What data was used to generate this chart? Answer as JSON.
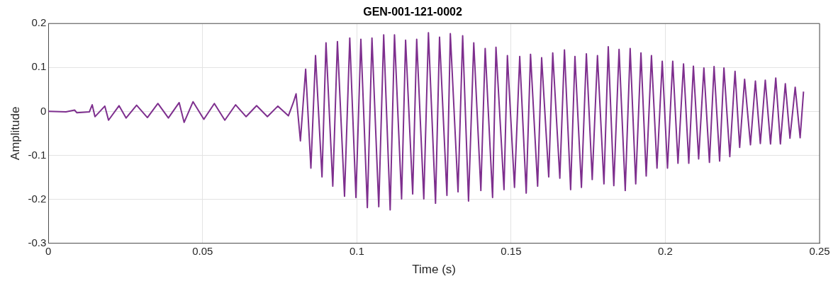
{
  "chart_data": {
    "type": "line",
    "title": "GEN-001-121-0002",
    "xlabel": "Time (s)",
    "ylabel": "Amplitude",
    "xlim": [
      0,
      0.25
    ],
    "xticks": [
      0,
      0.05,
      0.1,
      0.15,
      0.2,
      0.25
    ],
    "ylim": [
      -0.3,
      0.2
    ],
    "yticks": [
      -0.3,
      -0.2,
      -0.1,
      0,
      0.1,
      0.2
    ],
    "grid": true,
    "legend": false,
    "marker": "none",
    "line_style": "solid",
    "series": [
      {
        "color": "#7e2f8e",
        "x": [
          0,
          0.0057,
          0.0085,
          0.0092,
          0.0133,
          0.0142,
          0.0151,
          0.0183,
          0.0195,
          0.0229,
          0.0252,
          0.0286,
          0.0321,
          0.0355,
          0.0389,
          0.0424,
          0.044,
          0.0469,
          0.0504,
          0.0538,
          0.0572,
          0.0607,
          0.0641,
          0.0675,
          0.071,
          0.0744,
          0.0778,
          0.0794,
          0.0803,
          0.0817,
          0.0834,
          0.0851,
          0.0866,
          0.0887,
          0.09,
          0.0922,
          0.0937,
          0.096,
          0.0977,
          0.0997,
          0.1013,
          0.1034,
          0.1049,
          0.1071,
          0.1087,
          0.1108,
          0.1122,
          0.1145,
          0.1158,
          0.1181,
          0.1194,
          0.1217,
          0.1232,
          0.1255,
          0.1268,
          0.1292,
          0.1303,
          0.1328,
          0.1343,
          0.1362,
          0.1379,
          0.1402,
          0.1416,
          0.144,
          0.1451,
          0.1477,
          0.1488,
          0.1511,
          0.1528,
          0.1549,
          0.1563,
          0.1586,
          0.1599,
          0.1622,
          0.1635,
          0.1658,
          0.1673,
          0.1693,
          0.1707,
          0.1728,
          0.1744,
          0.1763,
          0.178,
          0.1801,
          0.1815,
          0.1833,
          0.185,
          0.187,
          0.1886,
          0.1904,
          0.1921,
          0.1938,
          0.1955,
          0.1973,
          0.199,
          0.2007,
          0.2024,
          0.2041,
          0.2059,
          0.2076,
          0.2091,
          0.2108,
          0.2125,
          0.2143,
          0.2158,
          0.2176,
          0.219,
          0.2209,
          0.2226,
          0.2241,
          0.2257,
          0.2276,
          0.2292,
          0.2308,
          0.2324,
          0.2341,
          0.2358,
          0.2373,
          0.2389,
          0.2404,
          0.2421,
          0.2437,
          0.2448
        ],
        "values": [
          0,
          -0.001,
          0.003,
          -0.003,
          -0.001,
          0.015,
          -0.012,
          0.012,
          -0.02,
          0.013,
          -0.015,
          0.014,
          -0.014,
          0.018,
          -0.015,
          0.02,
          -0.025,
          0.022,
          -0.018,
          0.018,
          -0.02,
          0.015,
          -0.012,
          0.013,
          -0.012,
          0.012,
          -0.01,
          0.02,
          0.04,
          -0.067,
          0.096,
          -0.129,
          0.127,
          -0.149,
          0.156,
          -0.17,
          0.159,
          -0.193,
          0.167,
          -0.196,
          0.164,
          -0.219,
          0.167,
          -0.217,
          0.174,
          -0.224,
          0.174,
          -0.199,
          0.162,
          -0.188,
          0.164,
          -0.199,
          0.179,
          -0.209,
          0.169,
          -0.191,
          0.177,
          -0.183,
          0.172,
          -0.204,
          0.156,
          -0.18,
          0.143,
          -0.196,
          0.146,
          -0.178,
          0.127,
          -0.173,
          0.125,
          -0.186,
          0.13,
          -0.17,
          0.122,
          -0.149,
          0.133,
          -0.152,
          0.14,
          -0.178,
          0.125,
          -0.173,
          0.131,
          -0.155,
          0.127,
          -0.165,
          0.147,
          -0.169,
          0.141,
          -0.18,
          0.143,
          -0.165,
          0.133,
          -0.147,
          0.127,
          -0.129,
          0.114,
          -0.129,
          0.114,
          -0.118,
          0.108,
          -0.118,
          0.103,
          -0.108,
          0.099,
          -0.116,
          0.102,
          -0.113,
          0.099,
          -0.103,
          0.091,
          -0.082,
          0.073,
          -0.076,
          0.069,
          -0.073,
          0.071,
          -0.074,
          0.076,
          -0.074,
          0.063,
          -0.061,
          0.055,
          -0.06,
          0.045
        ]
      }
    ]
  }
}
